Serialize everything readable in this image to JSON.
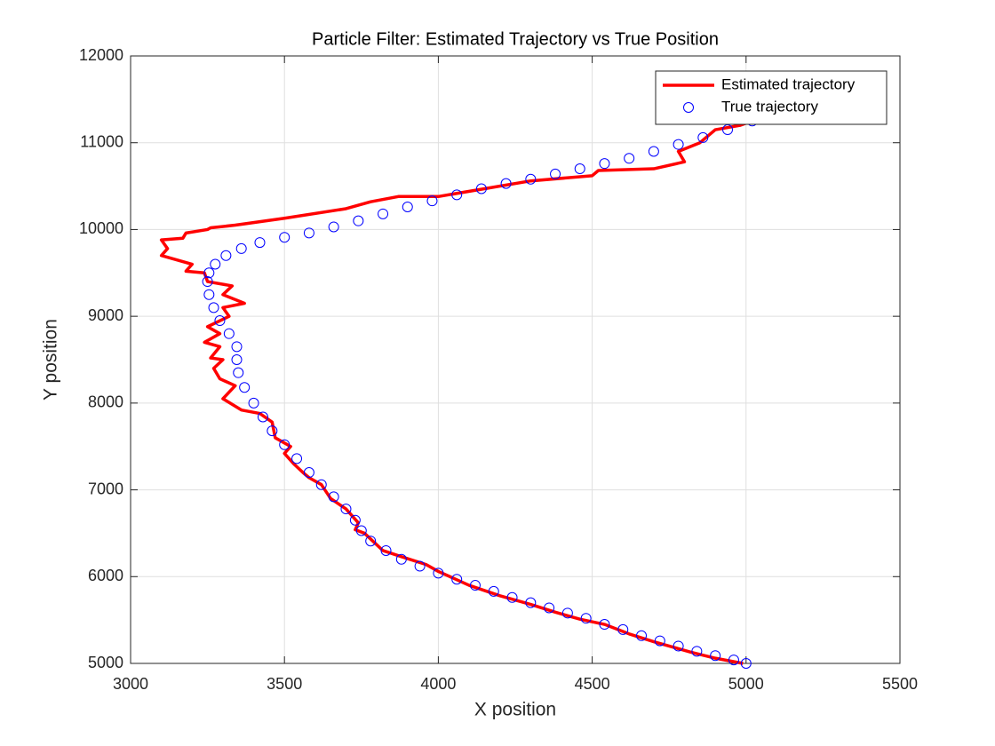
{
  "chart_data": {
    "type": "line",
    "title": "Particle Filter: Estimated Trajectory vs True Position",
    "xlabel": "X position",
    "ylabel": "Y position",
    "xlim": [
      3000,
      5500
    ],
    "xticks": [
      3000,
      3500,
      4000,
      4500,
      5000,
      5500
    ],
    "ylim": [
      5000,
      12000
    ],
    "yticks": [
      5000,
      6000,
      7000,
      8000,
      9000,
      10000,
      11000,
      12000
    ],
    "grid": true,
    "legend": "upper right",
    "series": [
      {
        "name": "Estimated trajectory",
        "type": "line",
        "color": "#ff0000",
        "x": [
          4990,
          4900,
          4820,
          4760,
          4700,
          4620,
          4540,
          4460,
          4380,
          4300,
          4200,
          4100,
          4000,
          3960,
          3880,
          3820,
          3790,
          3760,
          3730,
          3740,
          3700,
          3650,
          3620,
          3580,
          3560,
          3530,
          3500,
          3520,
          3470,
          3460,
          3420,
          3360,
          3300,
          3340,
          3290,
          3270,
          3300,
          3260,
          3290,
          3240,
          3290,
          3250,
          3320,
          3300,
          3370,
          3300,
          3330,
          3250,
          3240,
          3180,
          3200,
          3100,
          3120,
          3100,
          3170,
          3180,
          3250,
          3260,
          3340,
          3500,
          3700,
          3780,
          3870,
          4000,
          4150,
          4300,
          4500,
          4520,
          4700,
          4800,
          4780,
          4850,
          4900,
          4980,
          5020
        ],
        "values": [
          5000,
          5060,
          5130,
          5190,
          5250,
          5340,
          5450,
          5510,
          5590,
          5680,
          5780,
          5900,
          6060,
          6140,
          6230,
          6300,
          6400,
          6500,
          6540,
          6620,
          6780,
          6900,
          7060,
          7140,
          7200,
          7300,
          7420,
          7500,
          7600,
          7780,
          7880,
          7920,
          8050,
          8200,
          8280,
          8400,
          8500,
          8520,
          8650,
          8700,
          8800,
          8880,
          9000,
          9100,
          9150,
          9250,
          9350,
          9400,
          9500,
          9520,
          9600,
          9700,
          9780,
          9880,
          9900,
          9960,
          10000,
          10020,
          10050,
          10130,
          10240,
          10320,
          10380,
          10380,
          10470,
          10560,
          10620,
          10680,
          10700,
          10780,
          10900,
          11000,
          11150,
          11200,
          11250
        ]
      },
      {
        "name": "True trajectory",
        "type": "scatter",
        "color": "#0000ff",
        "x": [
          5000,
          4960,
          4900,
          4840,
          4780,
          4720,
          4660,
          4600,
          4540,
          4480,
          4420,
          4360,
          4300,
          4240,
          4180,
          4120,
          4060,
          4000,
          3940,
          3880,
          3830,
          3780,
          3750,
          3730,
          3700,
          3660,
          3620,
          3580,
          3540,
          3500,
          3460,
          3430,
          3400,
          3370,
          3350,
          3345,
          3345,
          3320,
          3290,
          3270,
          3255,
          3250,
          3255,
          3275,
          3310,
          3360,
          3420,
          3500,
          3580,
          3660,
          3740,
          3820,
          3900,
          3980,
          4060,
          4140,
          4220,
          4300,
          4380,
          4460,
          4540,
          4620,
          4700,
          4780,
          4860,
          4940,
          5020
        ],
        "values": [
          5000,
          5040,
          5090,
          5140,
          5200,
          5260,
          5320,
          5390,
          5450,
          5520,
          5580,
          5640,
          5700,
          5760,
          5830,
          5900,
          5970,
          6040,
          6120,
          6200,
          6300,
          6410,
          6530,
          6650,
          6780,
          6920,
          7060,
          7200,
          7360,
          7520,
          7680,
          7840,
          8000,
          8180,
          8350,
          8500,
          8650,
          8800,
          8950,
          9100,
          9250,
          9400,
          9500,
          9600,
          9700,
          9780,
          9850,
          9910,
          9960,
          10030,
          10100,
          10180,
          10260,
          10330,
          10400,
          10470,
          10530,
          10580,
          10640,
          10700,
          10760,
          10820,
          10900,
          10980,
          11060,
          11150,
          11250
        ]
      }
    ]
  }
}
